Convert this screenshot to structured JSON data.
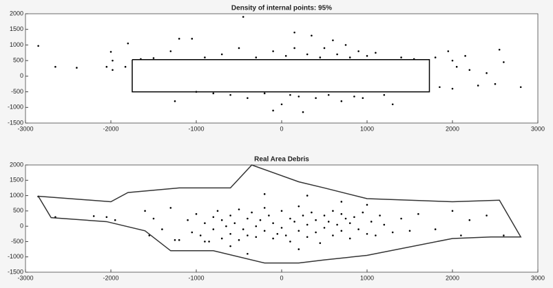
{
  "chart_data": [
    {
      "type": "scatter",
      "title": "Density of internal points: 95%",
      "xlim": [
        -3000,
        3000
      ],
      "ylim": [
        -1500,
        2000
      ],
      "xticks": [
        -3000,
        -2000,
        -1000,
        0,
        1000,
        2000,
        3000
      ],
      "yticks": [
        -1500,
        -1000,
        -500,
        0,
        500,
        1000,
        1500,
        2000
      ],
      "series": [
        {
          "mode": "markers",
          "color": "#000000",
          "x": [
            -2850,
            -2650,
            -2400,
            -2050,
            -2000,
            -1980,
            -1980,
            -1800,
            -1830,
            -1650,
            -1500,
            -1300,
            -1250,
            -1200,
            -1050,
            -1000,
            -800,
            -700,
            -600,
            -500,
            -450,
            -400,
            -300,
            -200,
            -100,
            0,
            50,
            100,
            150,
            200,
            250,
            300,
            350,
            400,
            450,
            500,
            550,
            600,
            650,
            700,
            750,
            800,
            850,
            900,
            950,
            1000,
            1100,
            1200,
            1300,
            1400,
            1550,
            1800,
            1850,
            1950,
            2000,
            2050,
            2000,
            2150,
            2200,
            2300,
            2400,
            2550,
            2500,
            2600,
            2800,
            -100,
            150,
            -900
          ],
          "values": [
            970,
            300,
            270,
            300,
            780,
            500,
            200,
            1050,
            300,
            550,
            580,
            800,
            -800,
            1200,
            1200,
            -500,
            -550,
            700,
            -600,
            900,
            1900,
            -700,
            600,
            -550,
            800,
            -900,
            650,
            -600,
            1400,
            -650,
            -1150,
            700,
            1300,
            -700,
            600,
            900,
            -600,
            1150,
            700,
            -800,
            1000,
            600,
            -650,
            800,
            -700,
            650,
            750,
            -600,
            -900,
            600,
            550,
            600,
            -350,
            800,
            500,
            300,
            -400,
            650,
            200,
            -300,
            100,
            850,
            -250,
            450,
            -350,
            -1100,
            900,
            600
          ]
        },
        {
          "mode": "line",
          "color": "#000000",
          "x": [
            -1750,
            1730,
            1730,
            -1750,
            -1750
          ],
          "values": [
            530,
            530,
            -500,
            -500,
            530
          ]
        }
      ]
    },
    {
      "type": "scatter",
      "title": "Real Area Debris",
      "xlim": [
        -3000,
        3000
      ],
      "ylim": [
        -1500,
        2000
      ],
      "xticks": [
        -3000,
        -2000,
        -1000,
        0,
        1000,
        2000,
        3000
      ],
      "yticks": [
        -1500,
        -1000,
        -500,
        0,
        500,
        1000,
        1500,
        2000
      ],
      "series": [
        {
          "mode": "markers",
          "color": "#000000",
          "x": [
            -2850,
            -2650,
            -2200,
            -2050,
            -1950,
            -1600,
            -1550,
            -1500,
            -1400,
            -1300,
            -1250,
            -1100,
            -1050,
            -1000,
            -950,
            -900,
            -850,
            -800,
            -800,
            -750,
            -700,
            -700,
            -650,
            -600,
            -600,
            -550,
            -500,
            -500,
            -450,
            -400,
            -400,
            -350,
            -300,
            -300,
            -250,
            -200,
            -200,
            -150,
            -100,
            -100,
            -50,
            0,
            0,
            50,
            100,
            100,
            150,
            200,
            200,
            250,
            300,
            300,
            350,
            400,
            400,
            450,
            500,
            500,
            550,
            600,
            600,
            650,
            700,
            700,
            750,
            800,
            800,
            850,
            900,
            950,
            1000,
            1050,
            1100,
            1150,
            1200,
            1300,
            1400,
            1500,
            1600,
            1800,
            2000,
            2100,
            2200,
            2400,
            2600,
            -200,
            300,
            -1200,
            -600,
            200,
            700,
            -400,
            1000,
            -900
          ],
          "values": [
            970,
            300,
            330,
            300,
            200,
            500,
            -300,
            250,
            -100,
            600,
            -450,
            200,
            -200,
            400,
            -300,
            100,
            -500,
            300,
            -100,
            500,
            200,
            -400,
            0,
            350,
            -250,
            100,
            550,
            -450,
            -100,
            250,
            -300,
            450,
            0,
            -350,
            200,
            -150,
            600,
            350,
            -400,
            100,
            -250,
            500,
            -50,
            -300,
            250,
            -500,
            150,
            -150,
            650,
            350,
            -350,
            50,
            450,
            -200,
            200,
            -550,
            350,
            -50,
            150,
            500,
            -300,
            50,
            -150,
            400,
            250,
            -400,
            100,
            300,
            -100,
            450,
            -250,
            150,
            -300,
            350,
            50,
            -200,
            250,
            -150,
            400,
            -100,
            500,
            -300,
            200,
            350,
            -300,
            1050,
            1000,
            -450,
            -650,
            -750,
            800,
            -900,
            700,
            -500
          ]
        },
        {
          "mode": "line",
          "color": "#333333",
          "x": [
            -2850,
            -2000,
            -1800,
            -1200,
            -600,
            -350,
            200,
            500,
            1000,
            2000,
            2550,
            2800,
            2450,
            2000,
            1000,
            500,
            200,
            -200,
            -800,
            -1300,
            -1600,
            -2050,
            -2700,
            -2850
          ],
          "values": [
            980,
            800,
            1100,
            1250,
            1250,
            2000,
            1450,
            1250,
            900,
            800,
            850,
            -350,
            -350,
            -400,
            -950,
            -1100,
            -1200,
            -1200,
            -800,
            -800,
            -150,
            150,
            280,
            980
          ]
        }
      ]
    }
  ]
}
